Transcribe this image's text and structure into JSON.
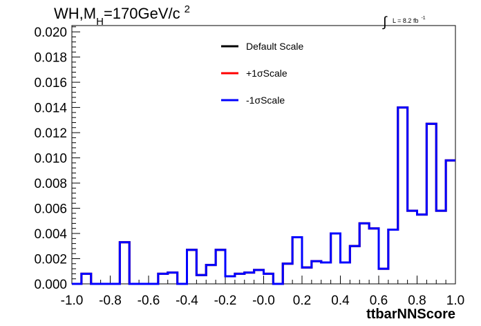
{
  "chart_data": {
    "type": "line",
    "title_main": "WH,M",
    "title_sub": "H",
    "title_rest": "=170GeV/c",
    "title_sup": "2",
    "lumi_int": "∫",
    "lumi_text": "L = 8.2 fb",
    "lumi_sup": "-1",
    "xlabel": "ttbarNNScore",
    "xlim": [
      -1.0,
      1.0
    ],
    "ylim": [
      0.0,
      0.0205
    ],
    "x_ticks": [
      "-1.0",
      "-0.8",
      "-0.6",
      "-0.4",
      "-0.2",
      "-0.0",
      "0.2",
      "0.4",
      "0.6",
      "0.8",
      "1.0"
    ],
    "y_ticks": [
      "0.000",
      "0.002",
      "0.004",
      "0.006",
      "0.008",
      "0.010",
      "0.012",
      "0.014",
      "0.016",
      "0.018",
      "0.020"
    ],
    "legend_position": "top-center",
    "series": [
      {
        "name": "Default Scale",
        "color": "#000000"
      },
      {
        "name": "+1σScale",
        "color": "#ff0000"
      },
      {
        "name": "-1σScale",
        "color": "#0000ff"
      }
    ],
    "bin_edges": [
      -1.0,
      -0.95,
      -0.9,
      -0.85,
      -0.8,
      -0.75,
      -0.7,
      -0.65,
      -0.6,
      -0.55,
      -0.5,
      -0.45,
      -0.4,
      -0.35,
      -0.3,
      -0.25,
      -0.2,
      -0.15,
      -0.1,
      -0.05,
      0.0,
      0.05,
      0.1,
      0.15,
      0.2,
      0.25,
      0.3,
      0.35,
      0.4,
      0.45,
      0.5,
      0.55,
      0.6,
      0.65,
      0.7,
      0.75,
      0.8,
      0.85,
      0.9,
      0.95,
      1.0
    ],
    "values": [
      0.0,
      0.0008,
      0.0,
      0.0,
      0.0,
      0.0033,
      0.0,
      0.0,
      0.0,
      0.0008,
      0.0009,
      0.0,
      0.0027,
      0.0007,
      0.0015,
      0.0027,
      0.0006,
      0.0008,
      0.0009,
      0.0011,
      0.0008,
      0.0,
      0.0016,
      0.0037,
      0.0013,
      0.0018,
      0.0017,
      0.004,
      0.0017,
      0.003,
      0.0048,
      0.0044,
      0.0012,
      0.0043,
      0.014,
      0.0058,
      0.0055,
      0.0127,
      0.0058,
      0.0098
    ]
  }
}
